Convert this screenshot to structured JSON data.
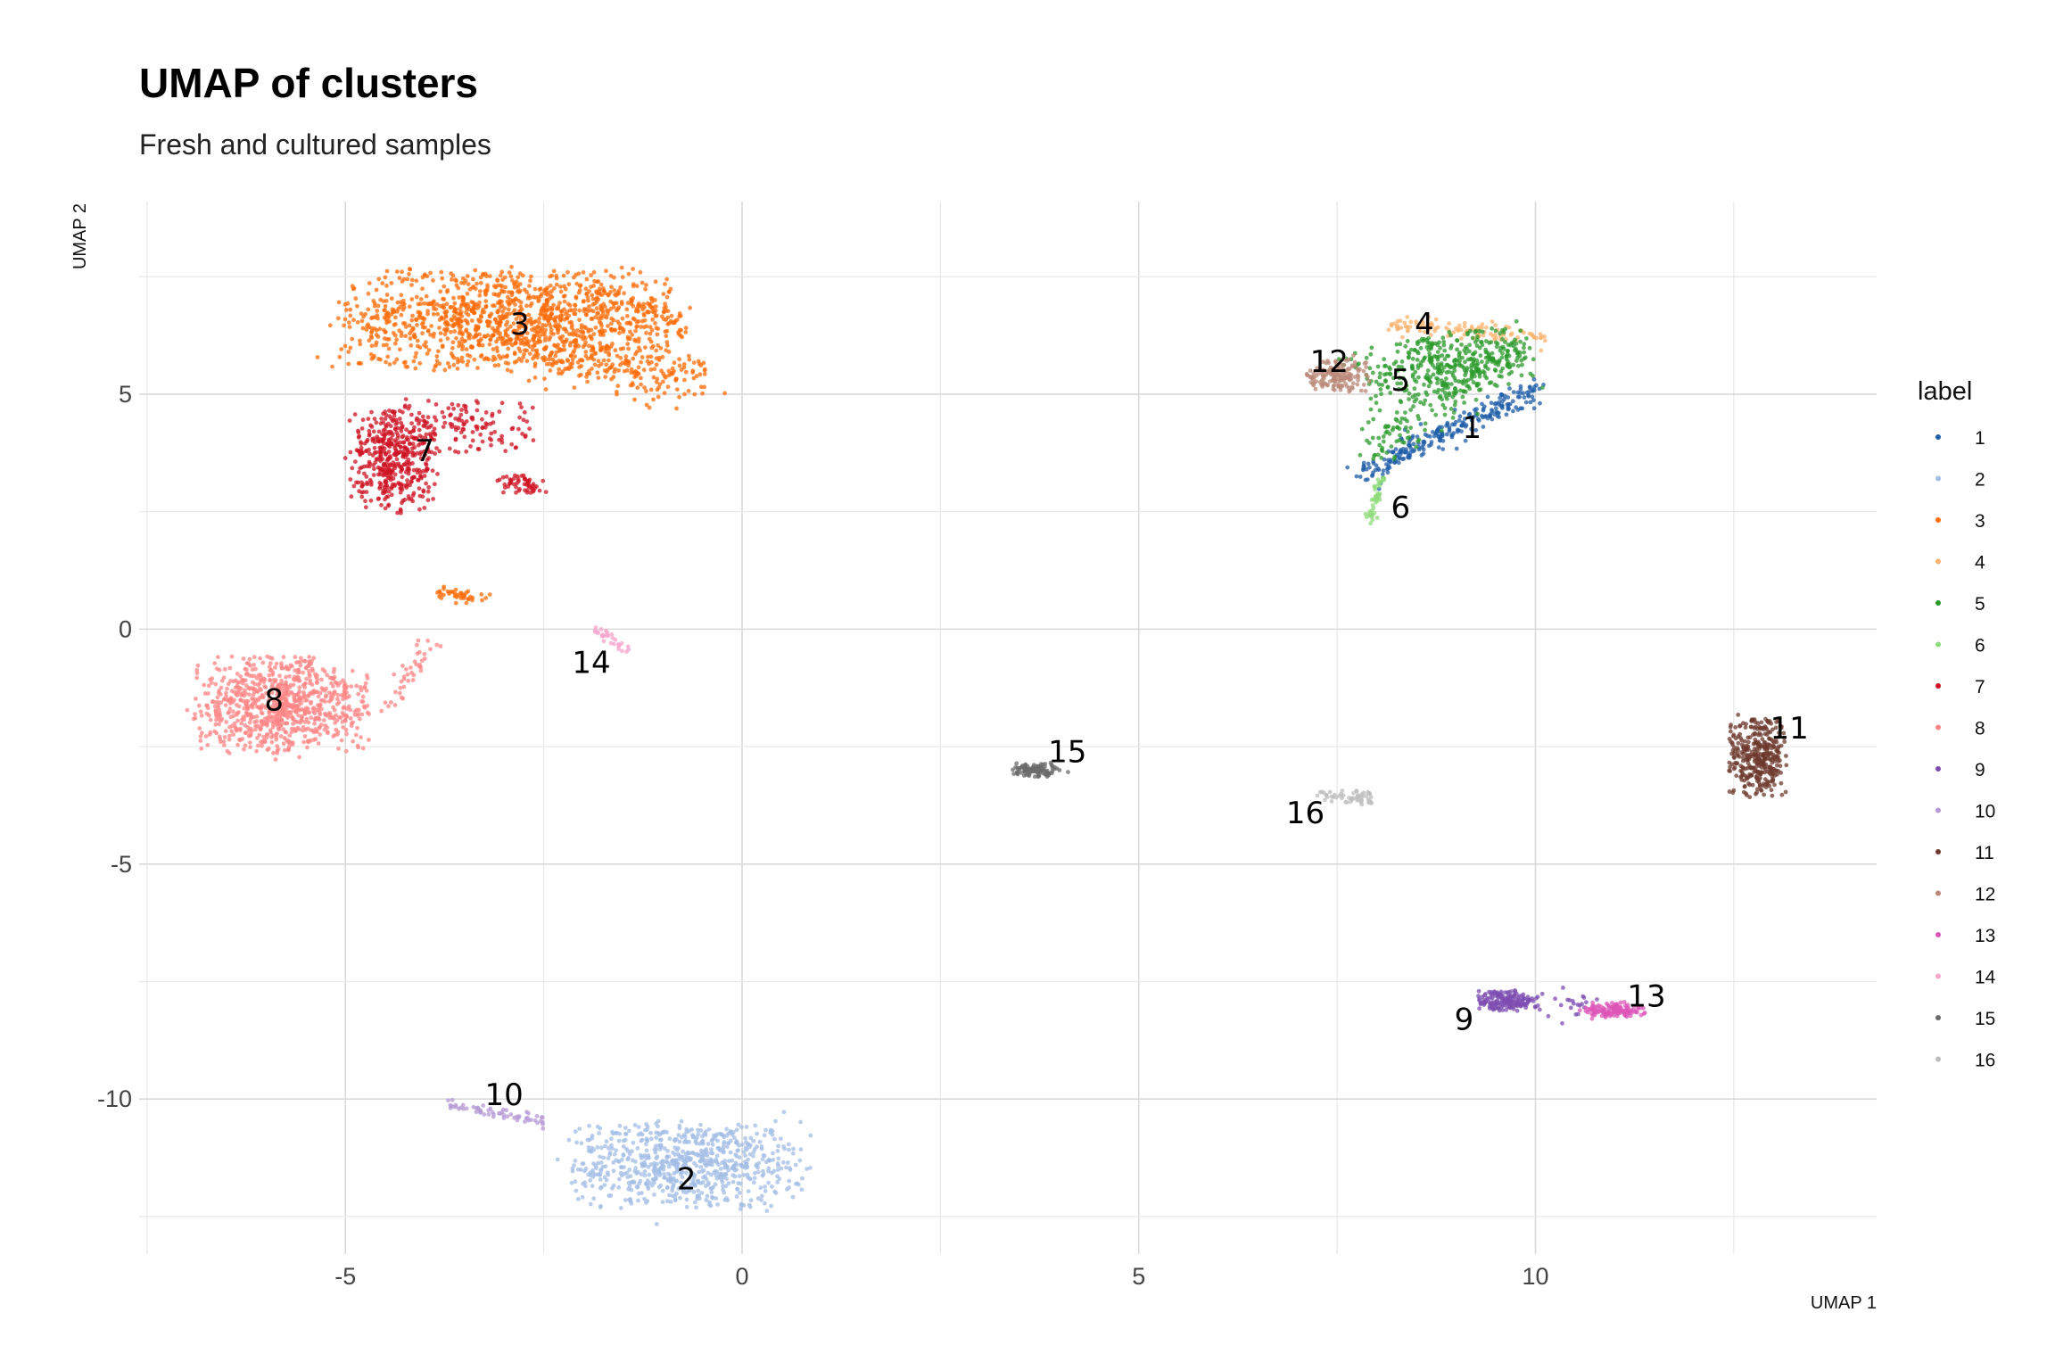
{
  "chart_data": {
    "type": "scatter",
    "title": "UMAP of clusters",
    "subtitle": "Fresh and cultured samples",
    "xlabel": "UMAP 1",
    "ylabel": "UMAP 2",
    "xlim": [
      -7.6,
      14.3
    ],
    "ylim": [
      -13.3,
      9.1
    ],
    "x_ticks": [
      -5,
      0,
      5,
      10
    ],
    "y_ticks": [
      -10,
      -5,
      0,
      5
    ],
    "grid": true,
    "legend_title": "label",
    "legend_position": "right",
    "clusters": [
      {
        "label": "1",
        "color": "#1f5ea8",
        "center": [
          9.0,
          4.1
        ]
      },
      {
        "label": "2",
        "color": "#a3bde6",
        "center": [
          -0.7,
          -11.5
        ]
      },
      {
        "label": "3",
        "color": "#ff6c0a",
        "center": [
          -3.0,
          6.4
        ]
      },
      {
        "label": "4",
        "color": "#f9b36e",
        "center": [
          8.9,
          6.3
        ]
      },
      {
        "label": "5",
        "color": "#2b9a2b",
        "center": [
          8.7,
          5.5
        ]
      },
      {
        "label": "6",
        "color": "#8fdc7c",
        "center": [
          8.0,
          2.7
        ]
      },
      {
        "label": "7",
        "color": "#cf1424",
        "center": [
          -4.4,
          3.9
        ]
      },
      {
        "label": "8",
        "color": "#ff8585",
        "center": [
          -5.8,
          -1.7
        ]
      },
      {
        "label": "9",
        "color": "#7d4db2",
        "center": [
          9.6,
          -7.9
        ]
      },
      {
        "label": "10",
        "color": "#b69ad6",
        "center": [
          -3.0,
          -10.2
        ]
      },
      {
        "label": "11",
        "color": "#6e3a2e",
        "center": [
          12.8,
          -2.7
        ]
      },
      {
        "label": "12",
        "color": "#b98878",
        "center": [
          7.6,
          5.4
        ]
      },
      {
        "label": "13",
        "color": "#de55b8",
        "center": [
          10.9,
          -8.1
        ]
      },
      {
        "label": "14",
        "color": "#f6a6cc",
        "center": [
          -1.8,
          -0.1
        ]
      },
      {
        "label": "15",
        "color": "#6b6b6b",
        "center": [
          3.7,
          -3.0
        ]
      },
      {
        "label": "16",
        "color": "#bdbdbd",
        "center": [
          7.6,
          -3.5
        ]
      }
    ],
    "cluster_labels": [
      {
        "text": "1",
        "x": 9.2,
        "y": 4.3
      },
      {
        "text": "2",
        "x": -0.7,
        "y": -11.7
      },
      {
        "text": "3",
        "x": -2.8,
        "y": 6.5
      },
      {
        "text": "4",
        "x": 8.6,
        "y": 6.5
      },
      {
        "text": "5",
        "x": 8.3,
        "y": 5.3
      },
      {
        "text": "6",
        "x": 8.3,
        "y": 2.6
      },
      {
        "text": "7",
        "x": -4.0,
        "y": 3.8
      },
      {
        "text": "8",
        "x": -5.9,
        "y": -1.5
      },
      {
        "text": "9",
        "x": 9.1,
        "y": -8.3
      },
      {
        "text": "10",
        "x": -3.0,
        "y": -9.9
      },
      {
        "text": "11",
        "x": 13.2,
        "y": -2.1
      },
      {
        "text": "12",
        "x": 7.4,
        "y": 5.7
      },
      {
        "text": "13",
        "x": 11.4,
        "y": -7.8
      },
      {
        "text": "14",
        "x": -1.9,
        "y": -0.7
      },
      {
        "text": "15",
        "x": 4.1,
        "y": -2.6
      },
      {
        "text": "16",
        "x": 7.1,
        "y": -3.9
      }
    ]
  }
}
